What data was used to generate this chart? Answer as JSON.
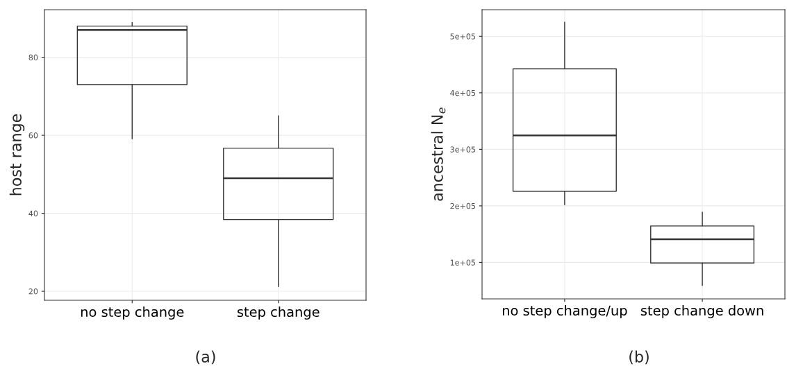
{
  "chart_data": [
    {
      "type": "box",
      "categories": [
        "no step change",
        "step change"
      ],
      "ylabel": "host range",
      "ylim": [
        17.7,
        92.2
      ],
      "yticks": [
        20,
        40,
        60,
        80
      ],
      "grid": true,
      "color": "#333333",
      "boxes": [
        {
          "low": 59.1,
          "q1": 73.0,
          "median": 87.0,
          "q3": 88.0,
          "high": 88.9
        },
        {
          "low": 21.2,
          "q1": 38.4,
          "median": 49.0,
          "q3": 56.7,
          "high": 65.0
        }
      ],
      "annotations": [
        "(a)"
      ]
    },
    {
      "type": "box",
      "categories": [
        "no step change/up",
        "step change down"
      ],
      "ylabel": "ancestral N$_{e}$",
      "ylim": [
        35500,
        547000
      ],
      "yticks": [
        {
          "value": 100000,
          "label": "1e+05"
        },
        {
          "value": 200000,
          "label": "2e+05"
        },
        {
          "value": 300000,
          "label": "3e+05"
        },
        {
          "value": 400000,
          "label": "4e+05"
        },
        {
          "value": 500000,
          "label": "5e+05"
        }
      ],
      "grid": true,
      "color": "#333333",
      "boxes": [
        {
          "low": 202000,
          "q1": 226000,
          "median": 324600,
          "q3": 442500,
          "high": 525000
        },
        {
          "low": 59000,
          "q1": 99000,
          "median": 141000,
          "q3": 164500,
          "high": 189000
        }
      ],
      "annotations": [
        "(b)"
      ]
    }
  ]
}
